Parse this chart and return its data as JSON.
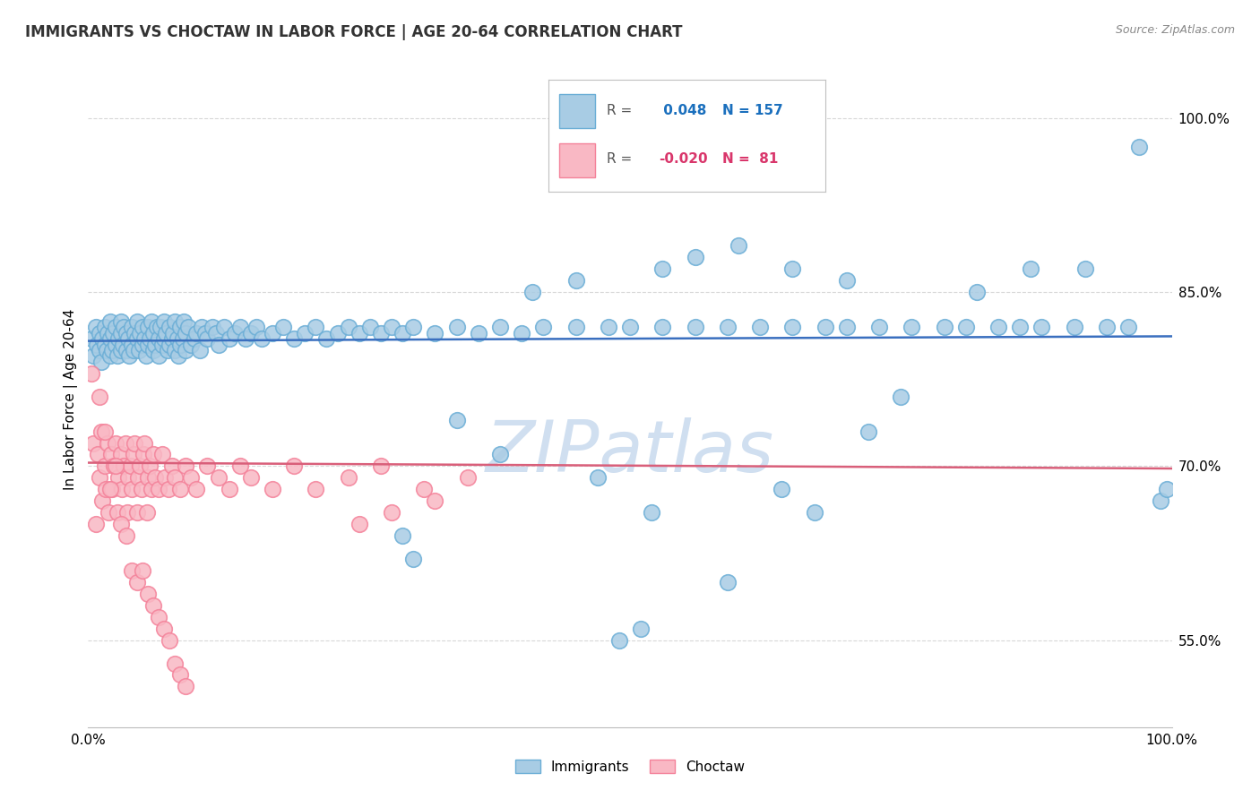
{
  "title": "IMMIGRANTS VS CHOCTAW IN LABOR FORCE | AGE 20-64 CORRELATION CHART",
  "source_text": "Source: ZipAtlas.com",
  "ylabel": "In Labor Force | Age 20-64",
  "xlim": [
    0.0,
    1.0
  ],
  "ylim": [
    0.475,
    1.04
  ],
  "yticks": [
    0.55,
    0.7,
    0.85,
    1.0
  ],
  "ytick_labels": [
    "55.0%",
    "70.0%",
    "85.0%",
    "100.0%"
  ],
  "xticks": [
    0.0,
    1.0
  ],
  "xtick_labels": [
    "0.0%",
    "100.0%"
  ],
  "immigrants_R": 0.048,
  "immigrants_N": 157,
  "choctaw_R": -0.02,
  "choctaw_N": 81,
  "immigrants_color": "#a8cce4",
  "choctaw_color": "#f9b8c4",
  "immigrants_edge_color": "#6baed6",
  "choctaw_edge_color": "#f4829a",
  "immigrants_line_color": "#3a6fbf",
  "choctaw_line_color": "#d95f7a",
  "background_color": "#ffffff",
  "watermark_color": "#d0dff0",
  "grid_color": "#d8d8d8",
  "title_fontsize": 12,
  "legend_R_color_immigrants": "#1a6fbd",
  "legend_R_color_choctaw": "#d9366b",
  "imm_line_y0": 0.808,
  "imm_line_y1": 0.812,
  "cho_line_y0": 0.703,
  "cho_line_y1": 0.698,
  "immigrants_x": [
    0.003,
    0.005,
    0.007,
    0.008,
    0.01,
    0.01,
    0.012,
    0.013,
    0.015,
    0.015,
    0.017,
    0.018,
    0.02,
    0.02,
    0.02,
    0.022,
    0.023,
    0.025,
    0.025,
    0.027,
    0.028,
    0.03,
    0.03,
    0.03,
    0.032,
    0.033,
    0.035,
    0.035,
    0.037,
    0.038,
    0.04,
    0.04,
    0.042,
    0.043,
    0.045,
    0.045,
    0.047,
    0.048,
    0.05,
    0.05,
    0.052,
    0.053,
    0.055,
    0.055,
    0.057,
    0.058,
    0.06,
    0.06,
    0.062,
    0.063,
    0.065,
    0.065,
    0.067,
    0.068,
    0.07,
    0.07,
    0.072,
    0.073,
    0.075,
    0.075,
    0.077,
    0.078,
    0.08,
    0.08,
    0.082,
    0.083,
    0.085,
    0.085,
    0.087,
    0.088,
    0.09,
    0.09,
    0.092,
    0.095,
    0.098,
    0.1,
    0.103,
    0.105,
    0.108,
    0.11,
    0.115,
    0.118,
    0.12,
    0.125,
    0.13,
    0.135,
    0.14,
    0.145,
    0.15,
    0.155,
    0.16,
    0.17,
    0.18,
    0.19,
    0.2,
    0.21,
    0.22,
    0.23,
    0.24,
    0.25,
    0.26,
    0.27,
    0.28,
    0.29,
    0.3,
    0.32,
    0.34,
    0.36,
    0.38,
    0.4,
    0.42,
    0.45,
    0.48,
    0.5,
    0.53,
    0.56,
    0.59,
    0.62,
    0.65,
    0.68,
    0.7,
    0.73,
    0.76,
    0.79,
    0.81,
    0.84,
    0.86,
    0.88,
    0.91,
    0.94,
    0.96,
    0.97,
    0.99,
    0.995,
    0.75,
    0.82,
    0.87,
    0.92,
    0.59,
    0.64,
    0.67,
    0.72,
    0.47,
    0.52,
    0.34,
    0.38,
    0.29,
    0.3,
    0.41,
    0.45,
    0.53,
    0.56,
    0.6,
    0.65,
    0.7,
    0.49,
    0.51
  ],
  "immigrants_y": [
    0.81,
    0.795,
    0.82,
    0.805,
    0.8,
    0.815,
    0.79,
    0.81,
    0.805,
    0.82,
    0.8,
    0.815,
    0.81,
    0.795,
    0.825,
    0.8,
    0.815,
    0.805,
    0.82,
    0.795,
    0.81,
    0.8,
    0.815,
    0.825,
    0.805,
    0.82,
    0.8,
    0.815,
    0.81,
    0.795,
    0.82,
    0.805,
    0.8,
    0.815,
    0.81,
    0.825,
    0.8,
    0.815,
    0.805,
    0.82,
    0.81,
    0.795,
    0.82,
    0.805,
    0.81,
    0.825,
    0.8,
    0.815,
    0.805,
    0.82,
    0.81,
    0.795,
    0.82,
    0.805,
    0.81,
    0.825,
    0.815,
    0.8,
    0.82,
    0.805,
    0.81,
    0.815,
    0.8,
    0.825,
    0.81,
    0.795,
    0.82,
    0.805,
    0.81,
    0.825,
    0.815,
    0.8,
    0.82,
    0.805,
    0.81,
    0.815,
    0.8,
    0.82,
    0.815,
    0.81,
    0.82,
    0.815,
    0.805,
    0.82,
    0.81,
    0.815,
    0.82,
    0.81,
    0.815,
    0.82,
    0.81,
    0.815,
    0.82,
    0.81,
    0.815,
    0.82,
    0.81,
    0.815,
    0.82,
    0.815,
    0.82,
    0.815,
    0.82,
    0.815,
    0.82,
    0.815,
    0.82,
    0.815,
    0.82,
    0.815,
    0.82,
    0.82,
    0.82,
    0.82,
    0.82,
    0.82,
    0.82,
    0.82,
    0.82,
    0.82,
    0.82,
    0.82,
    0.82,
    0.82,
    0.82,
    0.82,
    0.82,
    0.82,
    0.82,
    0.82,
    0.82,
    0.975,
    0.67,
    0.68,
    0.76,
    0.85,
    0.87,
    0.87,
    0.6,
    0.68,
    0.66,
    0.73,
    0.69,
    0.66,
    0.74,
    0.71,
    0.64,
    0.62,
    0.85,
    0.86,
    0.87,
    0.88,
    0.89,
    0.87,
    0.86,
    0.55,
    0.56
  ],
  "choctaw_x": [
    0.003,
    0.005,
    0.007,
    0.009,
    0.01,
    0.012,
    0.013,
    0.015,
    0.016,
    0.018,
    0.019,
    0.021,
    0.022,
    0.024,
    0.025,
    0.027,
    0.028,
    0.03,
    0.031,
    0.033,
    0.034,
    0.036,
    0.037,
    0.039,
    0.04,
    0.042,
    0.043,
    0.045,
    0.046,
    0.048,
    0.049,
    0.051,
    0.052,
    0.054,
    0.055,
    0.057,
    0.058,
    0.06,
    0.062,
    0.065,
    0.068,
    0.071,
    0.074,
    0.077,
    0.08,
    0.085,
    0.09,
    0.095,
    0.1,
    0.11,
    0.12,
    0.13,
    0.14,
    0.15,
    0.17,
    0.19,
    0.21,
    0.24,
    0.27,
    0.31,
    0.35,
    0.25,
    0.28,
    0.32,
    0.01,
    0.015,
    0.02,
    0.025,
    0.03,
    0.035,
    0.04,
    0.045,
    0.05,
    0.055,
    0.06,
    0.065,
    0.07,
    0.075,
    0.08,
    0.085,
    0.09
  ],
  "choctaw_y": [
    0.78,
    0.72,
    0.65,
    0.71,
    0.69,
    0.73,
    0.67,
    0.7,
    0.68,
    0.72,
    0.66,
    0.71,
    0.68,
    0.7,
    0.72,
    0.66,
    0.69,
    0.71,
    0.68,
    0.7,
    0.72,
    0.66,
    0.69,
    0.7,
    0.68,
    0.71,
    0.72,
    0.66,
    0.69,
    0.7,
    0.68,
    0.71,
    0.72,
    0.66,
    0.69,
    0.7,
    0.68,
    0.71,
    0.69,
    0.68,
    0.71,
    0.69,
    0.68,
    0.7,
    0.69,
    0.68,
    0.7,
    0.69,
    0.68,
    0.7,
    0.69,
    0.68,
    0.7,
    0.69,
    0.68,
    0.7,
    0.68,
    0.69,
    0.7,
    0.68,
    0.69,
    0.65,
    0.66,
    0.67,
    0.76,
    0.73,
    0.68,
    0.7,
    0.65,
    0.64,
    0.61,
    0.6,
    0.61,
    0.59,
    0.58,
    0.57,
    0.56,
    0.55,
    0.53,
    0.52,
    0.51
  ]
}
